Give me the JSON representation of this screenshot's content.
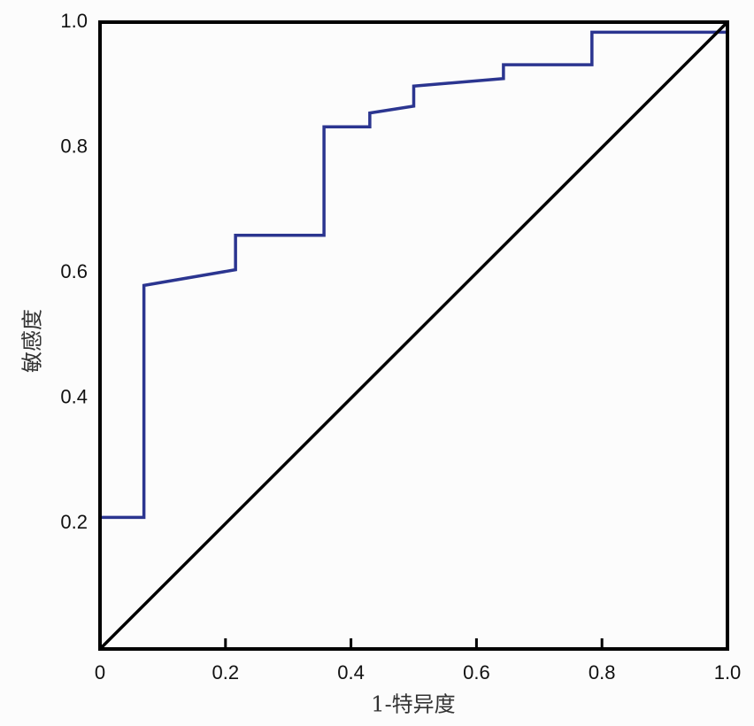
{
  "chart_data": {
    "type": "line",
    "xlabel": "1-特异度",
    "ylabel": "敏感度",
    "xlim": [
      0,
      1
    ],
    "ylim": [
      0,
      1
    ],
    "xticks": [
      0,
      0.2,
      0.4,
      0.6,
      0.8,
      {
        "value": 1,
        "label": "1.0"
      }
    ],
    "yticks": [
      0.2,
      0.4,
      0.6,
      0.8,
      {
        "value": 1,
        "label": "1.0"
      }
    ],
    "series": [
      {
        "color": "#2b3590",
        "x": [
          0,
          0,
          0.07,
          0.07,
          0.216,
          0.216,
          0.357,
          0.357,
          0.43,
          0.43,
          0.5,
          0.5,
          0.643,
          0.643,
          0.784,
          0.784,
          1,
          1
        ],
        "values": [
          0,
          0.21,
          0.21,
          0.58,
          0.605,
          0.66,
          0.66,
          0.833,
          0.833,
          0.855,
          0.866,
          0.898,
          0.91,
          0.932,
          0.932,
          0.984,
          0.984,
          1
        ]
      },
      {
        "color": "#000000",
        "x": [
          0,
          1
        ],
        "values": [
          0,
          1
        ]
      }
    ]
  }
}
